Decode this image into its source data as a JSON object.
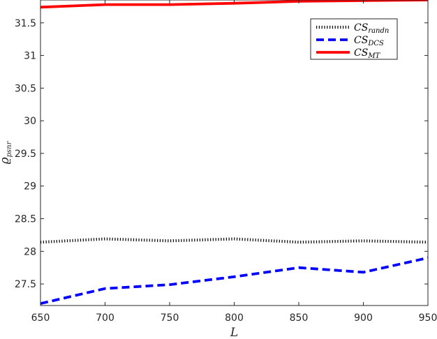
{
  "chart_data": {
    "type": "line",
    "title": "",
    "xlabel": "L",
    "ylabel": {
      "base": "ϱ",
      "sub": "psnr"
    },
    "xlim": [
      650,
      950
    ],
    "ylim": [
      27.17,
      31.85
    ],
    "x_ticks": [
      650,
      700,
      750,
      800,
      850,
      900,
      950
    ],
    "y_ticks": [
      27.5,
      28,
      28.5,
      29,
      29.5,
      30,
      30.5,
      31,
      31.5
    ],
    "y_tick_labels": [
      "27.5",
      "28",
      "28.5",
      "29",
      "29.5",
      "30",
      "30.5",
      "31",
      "31.5"
    ],
    "grid": false,
    "legend_position": "top-right",
    "x": [
      650,
      700,
      750,
      800,
      850,
      900,
      950
    ],
    "series": [
      {
        "name": "CS_randn",
        "label_base": "CS",
        "label_sub": "randn",
        "color": "#000000",
        "style": "dotted",
        "values": [
          28.14,
          28.19,
          28.16,
          28.19,
          28.14,
          28.16,
          28.14
        ]
      },
      {
        "name": "CS_DCS",
        "label_base": "CS",
        "label_sub": "DCS",
        "color": "#0000ff",
        "style": "dashed",
        "values": [
          27.2,
          27.43,
          27.49,
          27.61,
          27.75,
          27.68,
          27.9
        ]
      },
      {
        "name": "CS_MT",
        "label_base": "CS",
        "label_sub": "MT",
        "color": "#ff0000",
        "style": "solid",
        "values": [
          31.74,
          31.78,
          31.78,
          31.8,
          31.83,
          31.84,
          31.85
        ]
      }
    ]
  }
}
